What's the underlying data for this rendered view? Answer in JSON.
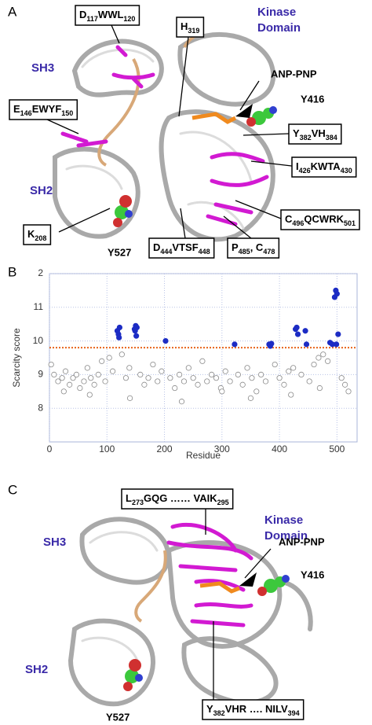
{
  "panel_a": {
    "letter": "A",
    "kinase_domain": [
      "Kinase",
      "Domain"
    ],
    "sh3": "SH3",
    "sh2": "SH2",
    "ligand": "ANP-PNP",
    "y416": "Y416",
    "y527": "Y527",
    "boxes": [
      [
        "D",
        "117",
        "WWL",
        "120"
      ],
      [
        "H",
        "319"
      ],
      [
        "E",
        "146",
        "EWYF",
        "150"
      ],
      [
        "Y",
        "382",
        "VH",
        "384"
      ],
      [
        "I",
        "426",
        "KWTA",
        "430"
      ],
      [
        "K",
        "208"
      ],
      [
        "C",
        "496",
        "QCWRK",
        "501"
      ],
      [
        "D",
        "444",
        "VTSF",
        "448"
      ],
      [
        "P",
        "485",
        ", C",
        "478"
      ]
    ]
  },
  "panel_b": {
    "letter": "B"
  },
  "chart_data": {
    "type": "scatter",
    "ylabel": "Scarcity score",
    "xlabel": "Residue",
    "xlim": [
      0,
      535
    ],
    "xticks": [
      0,
      100,
      200,
      300,
      400,
      500
    ],
    "ylim": [
      7.0,
      12
    ],
    "yticks": [
      8,
      9,
      10,
      11,
      {
        "value": 12,
        "label": "2"
      }
    ],
    "grid": true,
    "threshold": 9.8,
    "threshold_color": "#e8641a",
    "series": [
      {
        "color": "#ffffff",
        "edgecolor": "#8a8a8a",
        "x": [
          3,
          8,
          15,
          22,
          28,
          35,
          41,
          47,
          53,
          60,
          66,
          72,
          78,
          85,
          91,
          97,
          104,
          110,
          126,
          133,
          139,
          158,
          165,
          172,
          180,
          188,
          195,
          210,
          218,
          226,
          234,
          242,
          250,
          258,
          266,
          274,
          282,
          290,
          298,
          306,
          314,
          328,
          336,
          344,
          352,
          360,
          368,
          376,
          392,
          400,
          408,
          416,
          424,
          438,
          452,
          460,
          468,
          476,
          484,
          508,
          514,
          520,
          25,
          70,
          140,
          230,
          300,
          350,
          420,
          470
        ],
        "values": [
          9.3,
          9.0,
          8.8,
          8.9,
          9.1,
          8.7,
          8.9,
          9.0,
          8.6,
          8.8,
          9.2,
          8.9,
          8.7,
          9.0,
          9.4,
          8.8,
          9.5,
          9.1,
          9.6,
          8.9,
          9.2,
          9.0,
          8.7,
          8.9,
          9.3,
          8.8,
          9.1,
          8.9,
          8.6,
          9.0,
          8.8,
          9.2,
          8.9,
          8.7,
          9.4,
          8.8,
          9.0,
          8.9,
          8.6,
          9.1,
          8.8,
          9.0,
          8.7,
          9.2,
          8.9,
          8.5,
          9.0,
          8.8,
          9.3,
          8.9,
          8.7,
          9.1,
          9.2,
          9.0,
          8.8,
          9.3,
          9.5,
          9.6,
          9.4,
          8.9,
          8.7,
          8.5,
          8.5,
          8.4,
          8.3,
          8.2,
          8.5,
          8.3,
          8.4,
          8.6
        ]
      },
      {
        "color": "#1c2cc4",
        "edgecolor": "#1c2cc4",
        "x": [
          118,
          120,
          122,
          121,
          148,
          150,
          152,
          149,
          151,
          202,
          322,
          382,
          384,
          386,
          428,
          430,
          432,
          445,
          447,
          488,
          492,
          496,
          498,
          500,
          502,
          499
        ],
        "values": [
          10.3,
          10.2,
          10.4,
          10.1,
          10.35,
          10.45,
          10.4,
          10.3,
          10.15,
          10.0,
          9.9,
          9.9,
          9.85,
          9.92,
          10.35,
          10.4,
          10.2,
          10.3,
          9.9,
          9.95,
          9.9,
          11.3,
          11.5,
          11.4,
          10.2,
          9.9
        ]
      }
    ]
  },
  "panel_c": {
    "letter": "C",
    "kinase_domain": [
      "Kinase",
      "Domain"
    ],
    "sh3": "SH3",
    "sh2": "SH2",
    "ligand": "ANP-PNP",
    "y416": "Y416",
    "y527": "Y527",
    "boxes": [
      [
        "L",
        "273",
        "GQG …… VAIK",
        "295"
      ],
      [
        "Y",
        "382",
        "VHR …. NILV",
        "394"
      ]
    ]
  }
}
